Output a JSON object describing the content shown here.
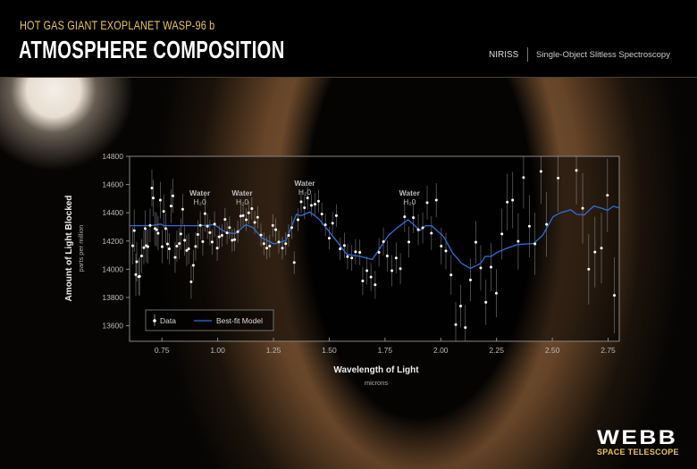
{
  "header": {
    "subtitle": "HOT GAS GIANT EXOPLANET WASP-96 b",
    "title": "ATMOSPHERE COMPOSITION",
    "instrument": "NIRISS",
    "mode": "Single-Object Slitless Spectroscopy"
  },
  "logo": {
    "name": "WEBB",
    "sub": "SPACE TELESCOPE"
  },
  "colors": {
    "model": "#2f6fd6",
    "data": "#ffffff",
    "subtitle": "#e8c35a"
  },
  "chart_data": {
    "type": "scatter",
    "xlabel": "Wavelength of Light",
    "xunit": "microns",
    "ylabel": "Amount of Light Blocked",
    "yunit": "parts per million",
    "xlim": [
      0.605,
      2.8
    ],
    "ylim": [
      13490,
      14800
    ],
    "xticks": [
      "0.75",
      "1.00",
      "1.25",
      "1.50",
      "1.75",
      "2.00",
      "2.25",
      "2.50",
      "2.75"
    ],
    "yticks": [
      "13600",
      "13800",
      "14000",
      "14200",
      "14400",
      "14600",
      "14800"
    ],
    "grid": false,
    "legend": {
      "placement": "bottom-left",
      "entries": [
        "Data",
        "Best-fit Model"
      ]
    },
    "annotations": [
      {
        "text": "Water",
        "formula": "H₂0",
        "x": 0.92,
        "y": 14520
      },
      {
        "text": "Water",
        "formula": "H₂0",
        "x": 1.11,
        "y": 14520
      },
      {
        "text": "Water",
        "formula": "H₂0",
        "x": 1.39,
        "y": 14590
      },
      {
        "text": "Water",
        "formula": "H₂0",
        "x": 1.86,
        "y": 14520
      }
    ],
    "series": [
      {
        "name": "Data",
        "type": "scatter",
        "points": [
          [
            0.619,
            14166,
            130
          ],
          [
            0.626,
            14274,
            150
          ],
          [
            0.637,
            14053,
            140
          ],
          [
            0.633,
            13962,
            150
          ],
          [
            0.646,
            13947,
            130
          ],
          [
            0.65,
            13950,
            140
          ],
          [
            0.659,
            14094,
            120
          ],
          [
            0.669,
            14153,
            120
          ],
          [
            0.675,
            14288,
            130
          ],
          [
            0.68,
            14167,
            120
          ],
          [
            0.687,
            14160,
            120
          ],
          [
            0.697,
            14310,
            120
          ],
          [
            0.705,
            14575,
            130
          ],
          [
            0.711,
            14505,
            130
          ],
          [
            0.719,
            14288,
            120
          ],
          [
            0.726,
            14280,
            120
          ],
          [
            0.733,
            14255,
            120
          ],
          [
            0.743,
            14490,
            130
          ],
          [
            0.751,
            14160,
            120
          ],
          [
            0.758,
            14410,
            120
          ],
          [
            0.767,
            14288,
            110
          ],
          [
            0.775,
            14179,
            110
          ],
          [
            0.783,
            14145,
            110
          ],
          [
            0.791,
            14448,
            120
          ],
          [
            0.799,
            14520,
            120
          ],
          [
            0.809,
            14084,
            110
          ],
          [
            0.817,
            14164,
            110
          ],
          [
            0.828,
            14182,
            110
          ],
          [
            0.835,
            14250,
            110
          ],
          [
            0.843,
            14425,
            110
          ],
          [
            0.852,
            14205,
            110
          ],
          [
            0.861,
            14133,
            110
          ],
          [
            0.87,
            14145,
            110
          ],
          [
            0.881,
            13911,
            120
          ],
          [
            0.891,
            14028,
            110
          ],
          [
            0.901,
            14162,
            100
          ],
          [
            0.911,
            14246,
            100
          ],
          [
            0.922,
            14311,
            100
          ],
          [
            0.933,
            14196,
            100
          ],
          [
            0.943,
            14394,
            130
          ],
          [
            0.954,
            14305,
            90
          ],
          [
            0.965,
            14260,
            90
          ],
          [
            0.975,
            14193,
            90
          ],
          [
            0.986,
            14320,
            90
          ],
          [
            0.998,
            14150,
            90
          ],
          [
            1.007,
            14230,
            80
          ],
          [
            1.019,
            14240,
            80
          ],
          [
            1.033,
            14353,
            80
          ],
          [
            1.042,
            14258,
            80
          ],
          [
            1.053,
            14295,
            80
          ],
          [
            1.065,
            14205,
            80
          ],
          [
            1.076,
            14210,
            80
          ],
          [
            1.09,
            14266,
            80
          ],
          [
            1.103,
            14377,
            80
          ],
          [
            1.114,
            14380,
            80
          ],
          [
            1.128,
            14351,
            80
          ],
          [
            1.139,
            14400,
            80
          ],
          [
            1.153,
            14430,
            80
          ],
          [
            1.166,
            14332,
            80
          ],
          [
            1.179,
            14368,
            80
          ],
          [
            1.194,
            14242,
            80
          ],
          [
            1.207,
            14181,
            80
          ],
          [
            1.22,
            14150,
            80
          ],
          [
            1.233,
            14164,
            80
          ],
          [
            1.247,
            14310,
            80
          ],
          [
            1.26,
            14280,
            80
          ],
          [
            1.274,
            14193,
            80
          ],
          [
            1.29,
            14150,
            80
          ],
          [
            1.305,
            14181,
            80
          ],
          [
            1.318,
            14240,
            80
          ],
          [
            1.332,
            14295,
            80
          ],
          [
            1.343,
            14048,
            80
          ],
          [
            1.36,
            14351,
            80
          ],
          [
            1.374,
            14478,
            80
          ],
          [
            1.389,
            14436,
            80
          ],
          [
            1.403,
            14505,
            80
          ],
          [
            1.42,
            14453,
            80
          ],
          [
            1.436,
            14461,
            80
          ],
          [
            1.452,
            14482,
            80
          ],
          [
            1.467,
            14391,
            80
          ],
          [
            1.483,
            14315,
            80
          ],
          [
            1.5,
            14220,
            80
          ],
          [
            1.515,
            14326,
            80
          ],
          [
            1.532,
            14380,
            80
          ],
          [
            1.549,
            14145,
            80
          ],
          [
            1.568,
            14168,
            90
          ],
          [
            1.582,
            14090,
            90
          ],
          [
            1.601,
            14080,
            90
          ],
          [
            1.618,
            14124,
            90
          ],
          [
            1.637,
            14120,
            90
          ],
          [
            1.65,
            13917,
            100
          ],
          [
            1.669,
            13990,
            100
          ],
          [
            1.687,
            13945,
            100
          ],
          [
            1.706,
            13890,
            100
          ],
          [
            1.723,
            14120,
            100
          ],
          [
            1.743,
            14196,
            100
          ],
          [
            1.76,
            14094,
            110
          ],
          [
            1.781,
            13990,
            110
          ],
          [
            1.8,
            14080,
            110
          ],
          [
            1.819,
            14004,
            110
          ],
          [
            1.838,
            14372,
            110
          ],
          [
            1.857,
            14193,
            110
          ],
          [
            1.877,
            14366,
            110
          ],
          [
            1.899,
            14280,
            110
          ],
          [
            1.919,
            14294,
            110
          ],
          [
            1.939,
            14472,
            120
          ],
          [
            1.958,
            14256,
            120
          ],
          [
            1.98,
            14490,
            120
          ],
          [
            2.002,
            14164,
            130
          ],
          [
            2.023,
            14130,
            130
          ],
          [
            2.046,
            13960,
            140
          ],
          [
            2.067,
            13608,
            160
          ],
          [
            2.089,
            13739,
            150
          ],
          [
            2.11,
            13587,
            160
          ],
          [
            2.133,
            13924,
            150
          ],
          [
            2.157,
            14192,
            150
          ],
          [
            2.179,
            14010,
            160
          ],
          [
            2.202,
            13766,
            160
          ],
          [
            2.225,
            14015,
            170
          ],
          [
            2.249,
            13830,
            170
          ],
          [
            2.274,
            14250,
            180
          ],
          [
            2.298,
            14476,
            200
          ],
          [
            2.322,
            14490,
            200
          ],
          [
            2.347,
            14198,
            200
          ],
          [
            2.371,
            14650,
            220
          ],
          [
            2.397,
            14305,
            220
          ],
          [
            2.422,
            14180,
            220
          ],
          [
            2.449,
            14693,
            230
          ],
          [
            2.474,
            14318,
            230
          ],
          [
            2.526,
            14646,
            240
          ],
          [
            2.608,
            14700,
            240
          ],
          [
            2.636,
            14432,
            250
          ],
          [
            2.663,
            14000,
            250
          ],
          [
            2.691,
            14122,
            250
          ],
          [
            2.72,
            14150,
            250
          ],
          [
            2.747,
            14524,
            260
          ],
          [
            2.778,
            13815,
            270
          ]
        ]
      },
      {
        "name": "Best-fit Model",
        "type": "line",
        "points": [
          [
            0.605,
            14309
          ],
          [
            0.7,
            14309
          ],
          [
            0.745,
            14320
          ],
          [
            0.76,
            14309
          ],
          [
            0.92,
            14309
          ],
          [
            0.985,
            14316
          ],
          [
            1.039,
            14259
          ],
          [
            1.079,
            14253
          ],
          [
            1.126,
            14316
          ],
          [
            1.159,
            14295
          ],
          [
            1.199,
            14221
          ],
          [
            1.253,
            14179
          ],
          [
            1.306,
            14204
          ],
          [
            1.353,
            14389
          ],
          [
            1.373,
            14379
          ],
          [
            1.413,
            14406
          ],
          [
            1.453,
            14358
          ],
          [
            1.493,
            14280
          ],
          [
            1.533,
            14200
          ],
          [
            1.579,
            14105
          ],
          [
            1.639,
            14091
          ],
          [
            1.693,
            14069
          ],
          [
            1.726,
            14147
          ],
          [
            1.766,
            14242
          ],
          [
            1.806,
            14295
          ],
          [
            1.853,
            14351
          ],
          [
            1.879,
            14316
          ],
          [
            1.906,
            14274
          ],
          [
            1.933,
            14309
          ],
          [
            1.959,
            14309
          ],
          [
            2.013,
            14231
          ],
          [
            2.053,
            14116
          ],
          [
            2.093,
            14042
          ],
          [
            2.133,
            14006
          ],
          [
            2.179,
            14042
          ],
          [
            2.199,
            14091
          ],
          [
            2.226,
            14091
          ],
          [
            2.253,
            14120
          ],
          [
            2.293,
            14147
          ],
          [
            2.343,
            14175
          ],
          [
            2.417,
            14183
          ],
          [
            2.457,
            14242
          ],
          [
            2.503,
            14372
          ],
          [
            2.536,
            14400
          ],
          [
            2.583,
            14421
          ],
          [
            2.609,
            14389
          ],
          [
            2.643,
            14385
          ],
          [
            2.686,
            14448
          ],
          [
            2.723,
            14431
          ],
          [
            2.747,
            14417
          ],
          [
            2.773,
            14446
          ],
          [
            2.8,
            14435
          ]
        ]
      }
    ]
  }
}
